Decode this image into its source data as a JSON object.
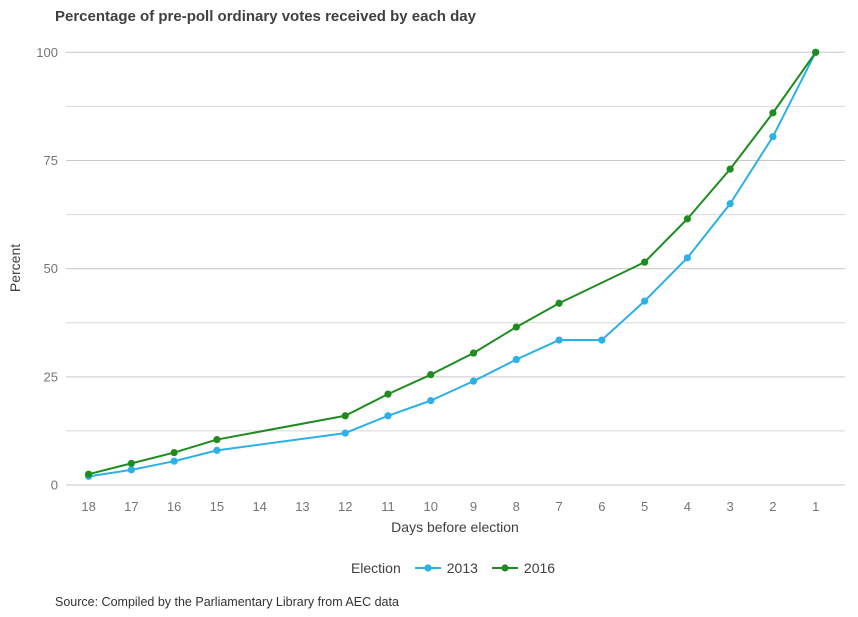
{
  "source": "Source: Compiled by the Parliamentary Library from AEC data",
  "chart_data": {
    "type": "line",
    "title": "Percentage of pre-poll ordinary votes received by each day",
    "xlabel": "Days before election",
    "ylabel": "Percent",
    "x_categories": [
      18,
      17,
      16,
      15,
      14,
      13,
      12,
      11,
      10,
      9,
      8,
      7,
      6,
      5,
      4,
      3,
      2,
      1
    ],
    "y_ticks": [
      0,
      25,
      50,
      75,
      100
    ],
    "y_minor_gridlines": [
      12.5,
      37.5,
      62.5,
      87.5
    ],
    "ylim": [
      0,
      100
    ],
    "grid": true,
    "legend_position": "bottom",
    "legend_title": "Election",
    "colors": {
      "major_gridline": "#c9c9c9",
      "minor_gridline": "#d8d8d8",
      "tick_label": "#757575",
      "axis_title": "#404040"
    },
    "series": [
      {
        "name": "2013",
        "color": "#2BB0E8",
        "points": [
          [
            18,
            2
          ],
          [
            17,
            3.5
          ],
          [
            16,
            5.5
          ],
          [
            15,
            8
          ],
          [
            12,
            12
          ],
          [
            11,
            16
          ],
          [
            10,
            19.5
          ],
          [
            9,
            24
          ],
          [
            8,
            29
          ],
          [
            7,
            33.5
          ],
          [
            6,
            33.5
          ],
          [
            5,
            42.5
          ],
          [
            4,
            52.5
          ],
          [
            3,
            65
          ],
          [
            2,
            80.5
          ],
          [
            1,
            100
          ]
        ]
      },
      {
        "name": "2016",
        "color": "#1E8C1E",
        "points": [
          [
            18,
            2.5
          ],
          [
            17,
            5
          ],
          [
            16,
            7.5
          ],
          [
            15,
            10.5
          ],
          [
            12,
            16
          ],
          [
            11,
            21
          ],
          [
            10,
            25.5
          ],
          [
            9,
            30.5
          ],
          [
            8,
            36.5
          ],
          [
            7,
            42
          ],
          [
            5,
            51.5
          ],
          [
            4,
            61.5
          ],
          [
            3,
            73
          ],
          [
            2,
            86
          ],
          [
            1,
            100
          ]
        ]
      }
    ]
  }
}
